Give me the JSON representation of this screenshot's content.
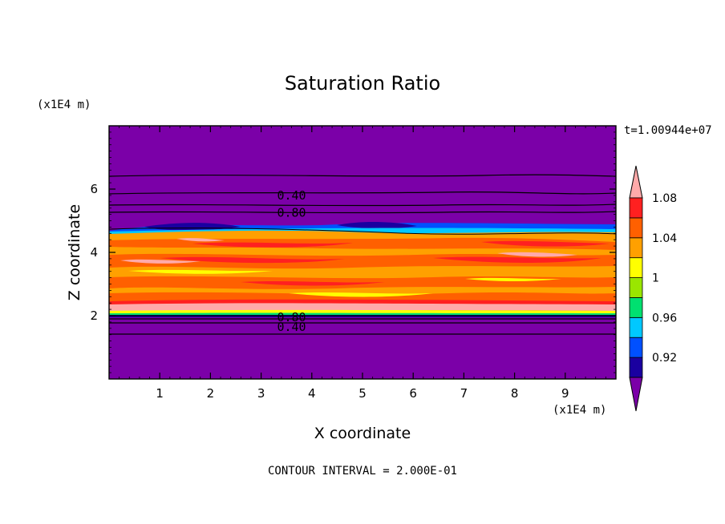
{
  "chart_data": {
    "type": "contour",
    "title": "Saturation Ratio",
    "xlabel": "X coordinate",
    "ylabel": "Z coordinate",
    "x_units": "(x1E4 m)",
    "y_units": "(x1E4 m)",
    "time_label": "t=1.00944e+07",
    "footer": "CONTOUR INTERVAL = 2.000E-01",
    "xlim": [
      0,
      10
    ],
    "ylim": [
      0,
      8
    ],
    "x_ticks": [
      "1",
      "2",
      "3",
      "4",
      "5",
      "6",
      "7",
      "8",
      "9"
    ],
    "y_ticks": [
      "2",
      "4",
      "6"
    ],
    "colorbar": {
      "tick_labels": [
        "0.92",
        "0.96",
        "1",
        "1.04",
        "1.08"
      ],
      "levels": [
        0.92,
        0.94,
        0.96,
        0.98,
        1.0,
        1.02,
        1.04,
        1.06,
        1.08,
        1.1
      ],
      "colors": [
        "#7b00a8",
        "#1a00a0",
        "#0050ff",
        "#00c8ff",
        "#00e070",
        "#9ae600",
        "#ffff00",
        "#ffa000",
        "#ff6000",
        "#ff2020",
        "#ffaaaa"
      ]
    },
    "contour_labels": [
      {
        "text": "0.40",
        "x": 3.6,
        "z": 5.8
      },
      {
        "text": "0.80",
        "x": 3.6,
        "z": 5.25
      },
      {
        "text": "0.80",
        "x": 3.6,
        "z": 1.95
      },
      {
        "text": "0.40",
        "x": 3.6,
        "z": 1.65
      }
    ],
    "upper_contours_z": [
      6.4,
      5.85,
      5.5,
      5.25
    ],
    "lower_contours_z": [
      2.0,
      1.9,
      1.75,
      1.4
    ],
    "moist_layer_z": [
      2.0,
      4.6
    ]
  }
}
